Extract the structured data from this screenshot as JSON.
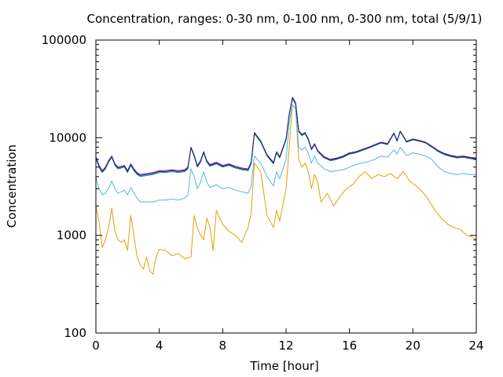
{
  "chart_data": {
    "type": "line",
    "title": "Concentration, ranges: 0-30 nm, 0-100 nm, 0-300 nm, total (5/9/1)",
    "xlabel": "Time [hour]",
    "ylabel": "Concentration",
    "xlim": [
      0,
      24
    ],
    "ylim": [
      100,
      100000
    ],
    "yscale": "log",
    "grid": false,
    "legend": "none",
    "x_ticks": [
      0,
      4,
      8,
      12,
      16,
      20,
      24
    ],
    "x_tick_labels": [
      "0",
      "4",
      "8",
      "12",
      "16",
      "20",
      "24"
    ],
    "y_ticks": [
      100,
      1000,
      10000,
      100000
    ],
    "y_tick_labels": [
      "100",
      "1000",
      "10000",
      "100000"
    ],
    "colors": [
      "#e69f00",
      "#56b4e9",
      "#009e73",
      "#9400d3",
      "#1a2a6c"
    ],
    "series": [
      {
        "color": "#e69f00",
        "x": [
          0,
          0.2,
          0.4,
          0.6,
          0.8,
          1.0,
          1.2,
          1.4,
          1.6,
          1.8,
          2.0,
          2.2,
          2.4,
          2.6,
          2.8,
          3.0,
          3.2,
          3.4,
          3.6,
          3.8,
          4.0,
          4.4,
          4.8,
          5.2,
          5.6,
          6.0,
          6.2,
          6.4,
          6.6,
          6.8,
          7.0,
          7.2,
          7.4,
          7.6,
          8.0,
          8.4,
          8.8,
          9.2,
          9.6,
          9.8,
          10.0,
          10.4,
          10.8,
          11.2,
          11.4,
          11.6,
          12.0,
          12.2,
          12.4,
          12.6,
          12.8,
          13.0,
          13.2,
          13.4,
          13.6,
          13.8,
          14.0,
          14.2,
          14.6,
          15.0,
          15.4,
          15.8,
          16.2,
          16.6,
          17.0,
          17.4,
          17.8,
          18.2,
          18.6,
          19.0,
          19.4,
          19.8,
          20.2,
          20.6,
          21.0,
          21.4,
          21.8,
          22.2,
          22.6,
          23.0,
          23.4,
          23.8,
          24.0
        ],
        "y": [
          2000,
          1400,
          750,
          900,
          1200,
          1900,
          1100,
          900,
          850,
          900,
          700,
          1600,
          1000,
          600,
          500,
          450,
          600,
          430,
          400,
          600,
          720,
          700,
          620,
          650,
          580,
          600,
          1600,
          1200,
          1000,
          900,
          1500,
          1200,
          700,
          1800,
          1300,
          1100,
          1000,
          850,
          1200,
          1700,
          5500,
          4500,
          1600,
          1200,
          1800,
          1400,
          3000,
          8000,
          22000,
          20000,
          6000,
          5000,
          5500,
          4500,
          3000,
          4200,
          3500,
          2200,
          2700,
          2000,
          2500,
          3000,
          3300,
          4000,
          4500,
          3800,
          4200,
          4000,
          4300,
          3800,
          4500,
          3600,
          3200,
          2800,
          2300,
          1800,
          1500,
          1300,
          1200,
          1150,
          1000,
          950,
          900
        ]
      },
      {
        "color": "#56b4e9",
        "x": [
          0,
          0.2,
          0.4,
          0.6,
          0.8,
          1.0,
          1.2,
          1.4,
          1.6,
          1.8,
          2.0,
          2.2,
          2.4,
          2.6,
          2.8,
          3.2,
          3.6,
          4.0,
          4.4,
          4.8,
          5.2,
          5.6,
          5.8,
          6.0,
          6.2,
          6.4,
          6.6,
          6.8,
          7.0,
          7.2,
          7.6,
          8.0,
          8.4,
          8.8,
          9.2,
          9.6,
          9.8,
          10.0,
          10.4,
          10.8,
          11.2,
          11.4,
          11.6,
          12.0,
          12.2,
          12.4,
          12.6,
          12.8,
          13.0,
          13.2,
          13.4,
          13.6,
          13.8,
          14.0,
          14.4,
          14.8,
          15.2,
          15.6,
          16.0,
          16.4,
          16.8,
          17.2,
          17.6,
          18.0,
          18.4,
          18.8,
          19.0,
          19.2,
          19.6,
          20.0,
          20.4,
          20.8,
          21.2,
          21.6,
          22.0,
          22.4,
          22.8,
          23.2,
          23.6,
          24.0
        ],
        "y": [
          4000,
          3000,
          2600,
          2700,
          3000,
          3600,
          3000,
          2700,
          2800,
          2900,
          2600,
          3100,
          2700,
          2400,
          2200,
          2200,
          2200,
          2300,
          2300,
          2350,
          2300,
          2400,
          2600,
          4800,
          4000,
          3000,
          3500,
          4500,
          3500,
          3100,
          3300,
          3000,
          3100,
          2900,
          2800,
          2700,
          3200,
          6500,
          5500,
          4000,
          3200,
          4500,
          3800,
          6000,
          14000,
          22000,
          20000,
          8000,
          7500,
          8000,
          7000,
          5500,
          6500,
          5500,
          4800,
          4500,
          4600,
          4700,
          5000,
          5300,
          5500,
          5700,
          6000,
          6500,
          6300,
          7500,
          6800,
          8000,
          6600,
          7000,
          6800,
          6500,
          6000,
          5000,
          4500,
          4300,
          4200,
          4300,
          4200,
          4200
        ]
      },
      {
        "color": "#009e73",
        "x": [
          0,
          0.2,
          0.4,
          0.6,
          0.8,
          1.0,
          1.2,
          1.4,
          1.6,
          1.8,
          2.0,
          2.2,
          2.4,
          2.6,
          2.8,
          3.2,
          3.6,
          4.0,
          4.4,
          4.8,
          5.2,
          5.6,
          5.8,
          6.0,
          6.2,
          6.4,
          6.6,
          6.8,
          7.0,
          7.2,
          7.6,
          8.0,
          8.4,
          8.8,
          9.2,
          9.6,
          9.8,
          10.0,
          10.4,
          10.8,
          11.2,
          11.4,
          11.6,
          12.0,
          12.2,
          12.4,
          12.6,
          12.8,
          13.0,
          13.2,
          13.4,
          13.6,
          13.8,
          14.0,
          14.4,
          14.8,
          15.2,
          15.6,
          16.0,
          16.4,
          16.8,
          17.2,
          17.6,
          18.0,
          18.4,
          18.8,
          19.0,
          19.2,
          19.6,
          20.0,
          20.4,
          20.8,
          21.2,
          21.6,
          22.0,
          22.4,
          22.8,
          23.2,
          23.6,
          24.0
        ],
        "y": [
          6200,
          5000,
          4400,
          4800,
          5600,
          6300,
          5200,
          4800,
          4900,
          5000,
          4400,
          5200,
          4600,
          4200,
          4000,
          4100,
          4200,
          4400,
          4400,
          4500,
          4400,
          4500,
          4800,
          7800,
          6500,
          5000,
          5600,
          7000,
          5600,
          5100,
          5400,
          5000,
          5200,
          4900,
          4700,
          4600,
          5400,
          11000,
          9000,
          6500,
          5400,
          7000,
          6200,
          9500,
          17000,
          25000,
          22000,
          11500,
          10500,
          11000,
          9500,
          7500,
          8500,
          7200,
          6200,
          5800,
          6000,
          6300,
          6800,
          7000,
          7400,
          7800,
          8300,
          8800,
          8500,
          11000,
          9200,
          11500,
          9000,
          9500,
          9200,
          8800,
          8000,
          7200,
          6700,
          6400,
          6200,
          6300,
          6100,
          6000
        ]
      },
      {
        "color": "#9400d3",
        "x": [
          0,
          0.2,
          0.4,
          0.6,
          0.8,
          1.0,
          1.2,
          1.4,
          1.6,
          1.8,
          2.0,
          2.2,
          2.4,
          2.6,
          2.8,
          3.2,
          3.6,
          4.0,
          4.4,
          4.8,
          5.2,
          5.6,
          5.8,
          6.0,
          6.2,
          6.4,
          6.6,
          6.8,
          7.0,
          7.2,
          7.6,
          8.0,
          8.4,
          8.8,
          9.2,
          9.6,
          9.8,
          10.0,
          10.4,
          10.8,
          11.2,
          11.4,
          11.6,
          12.0,
          12.2,
          12.4,
          12.6,
          12.8,
          13.0,
          13.2,
          13.4,
          13.6,
          13.8,
          14.0,
          14.4,
          14.8,
          15.2,
          15.6,
          16.0,
          16.4,
          16.8,
          17.2,
          17.6,
          18.0,
          18.4,
          18.8,
          19.0,
          19.2,
          19.6,
          20.0,
          20.4,
          20.8,
          21.2,
          21.6,
          22.0,
          22.4,
          22.8,
          23.2,
          23.6,
          24.0
        ],
        "y": [
          6400,
          5200,
          4600,
          5000,
          5800,
          6500,
          5400,
          5000,
          5100,
          5200,
          4600,
          5400,
          4800,
          4400,
          4200,
          4300,
          4400,
          4600,
          4600,
          4700,
          4600,
          4700,
          5000,
          8000,
          6700,
          5200,
          5800,
          7200,
          5800,
          5300,
          5600,
          5200,
          5400,
          5100,
          4900,
          4800,
          5600,
          11300,
          9300,
          6700,
          5600,
          7200,
          6400,
          9800,
          17500,
          25500,
          22500,
          11800,
          10800,
          11300,
          9800,
          7700,
          8700,
          7400,
          6400,
          6000,
          6200,
          6500,
          7000,
          7200,
          7600,
          8000,
          8500,
          9000,
          8700,
          11200,
          9400,
          11700,
          9200,
          9700,
          9400,
          9000,
          8200,
          7400,
          6900,
          6600,
          6400,
          6500,
          6300,
          6200
        ]
      },
      {
        "color": "#1a2a6c",
        "x": [
          0,
          0.2,
          0.4,
          0.6,
          0.8,
          1.0,
          1.2,
          1.4,
          1.6,
          1.8,
          2.0,
          2.2,
          2.4,
          2.6,
          2.8,
          3.2,
          3.6,
          4.0,
          4.4,
          4.8,
          5.2,
          5.6,
          5.8,
          6.0,
          6.2,
          6.4,
          6.6,
          6.8,
          7.0,
          7.2,
          7.6,
          8.0,
          8.4,
          8.8,
          9.2,
          9.6,
          9.8,
          10.0,
          10.4,
          10.8,
          11.2,
          11.4,
          11.6,
          12.0,
          12.2,
          12.4,
          12.6,
          12.8,
          13.0,
          13.2,
          13.4,
          13.6,
          13.8,
          14.0,
          14.4,
          14.8,
          15.2,
          15.6,
          16.0,
          16.4,
          16.8,
          17.2,
          17.6,
          18.0,
          18.4,
          18.8,
          19.0,
          19.2,
          19.6,
          20.0,
          20.4,
          20.8,
          21.2,
          21.6,
          22.0,
          22.4,
          22.8,
          23.2,
          23.6,
          24.0
        ],
        "y": [
          6300,
          5100,
          4500,
          4900,
          5700,
          6400,
          5300,
          4900,
          5000,
          5100,
          4500,
          5300,
          4700,
          4300,
          4100,
          4200,
          4300,
          4500,
          4500,
          4600,
          4500,
          4600,
          4900,
          7900,
          6600,
          5100,
          5700,
          7100,
          5700,
          5200,
          5500,
          5100,
          5300,
          5000,
          4800,
          4700,
          5500,
          11200,
          9200,
          6600,
          5500,
          7100,
          6300,
          9700,
          17300,
          26000,
          22800,
          11700,
          10700,
          11200,
          9700,
          7600,
          8600,
          7300,
          6300,
          5900,
          6100,
          6400,
          6900,
          7100,
          7500,
          7900,
          8400,
          8900,
          8600,
          11100,
          9300,
          11600,
          9100,
          9600,
          9300,
          8900,
          8100,
          7300,
          6800,
          6500,
          6300,
          6400,
          6200,
          6100
        ]
      }
    ]
  }
}
